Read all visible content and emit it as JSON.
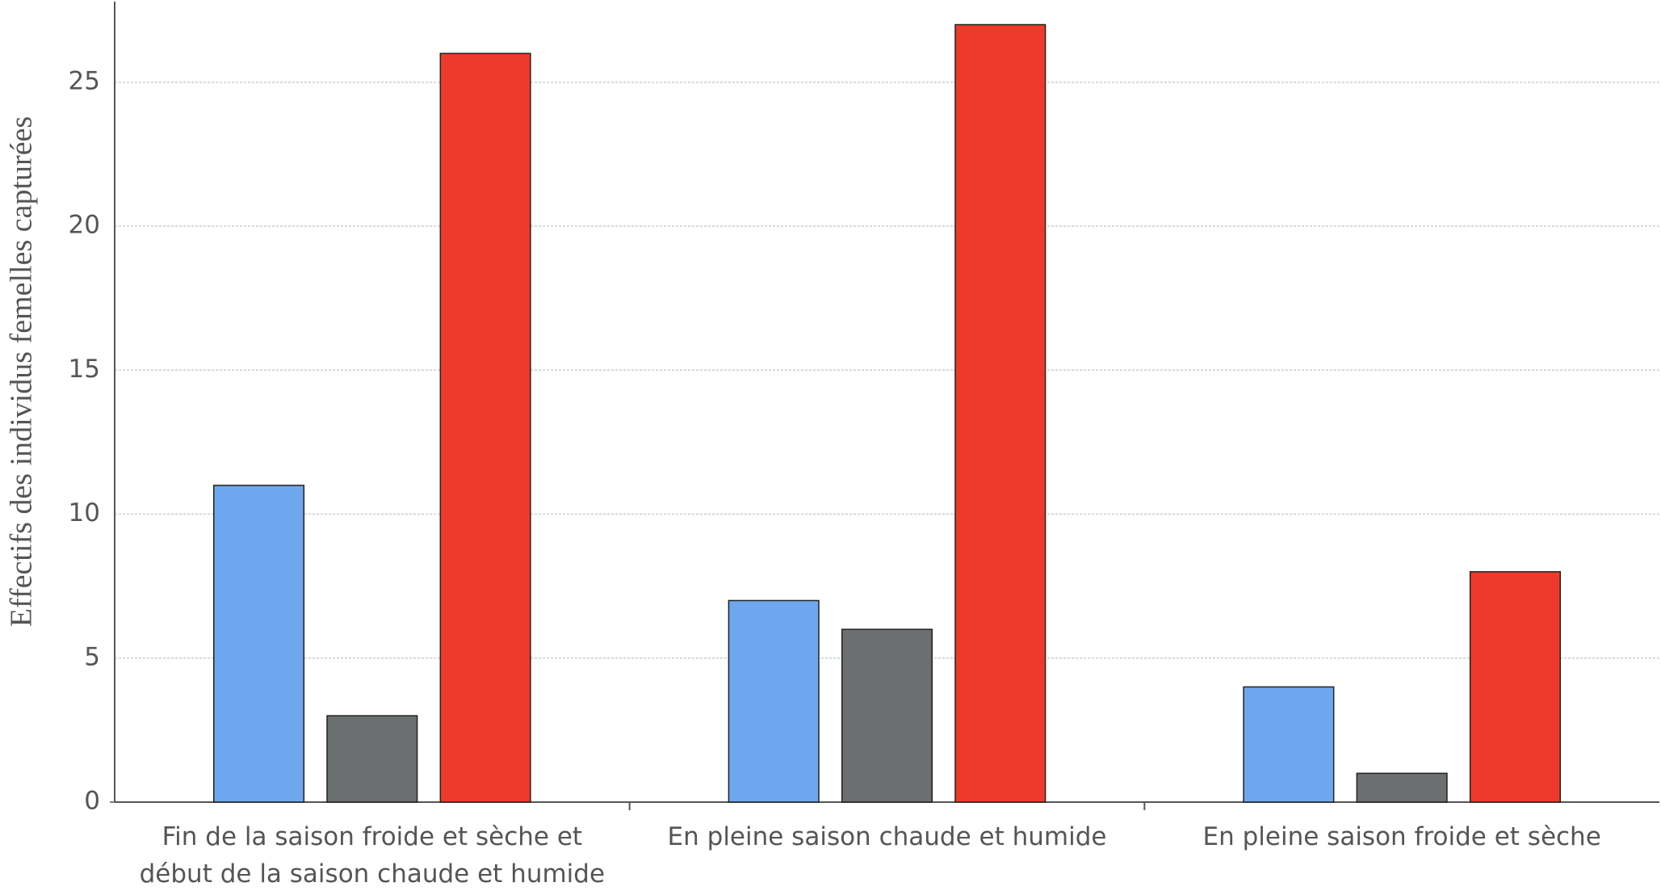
{
  "chart_data": {
    "type": "bar",
    "y_label": "Effectifs des individus femelles capturées",
    "categories": [
      "Fin de la saison froide et sèche et\ndébut de la saison chaude et humide",
      "En pleine saison chaude et humide",
      "En pleine saison froide et sèche"
    ],
    "series": [
      {
        "color": "#6fa7ee",
        "values": [
          11,
          7,
          4
        ]
      },
      {
        "color": "#6b6f6f",
        "values": [
          3,
          6,
          1
        ]
      },
      {
        "color": "#ee3a2a",
        "values": [
          26,
          27,
          8
        ]
      }
    ],
    "ylim": [
      0,
      27.8
    ],
    "yticks": [
      0,
      5,
      10,
      15,
      20,
      25
    ],
    "grid": true
  }
}
